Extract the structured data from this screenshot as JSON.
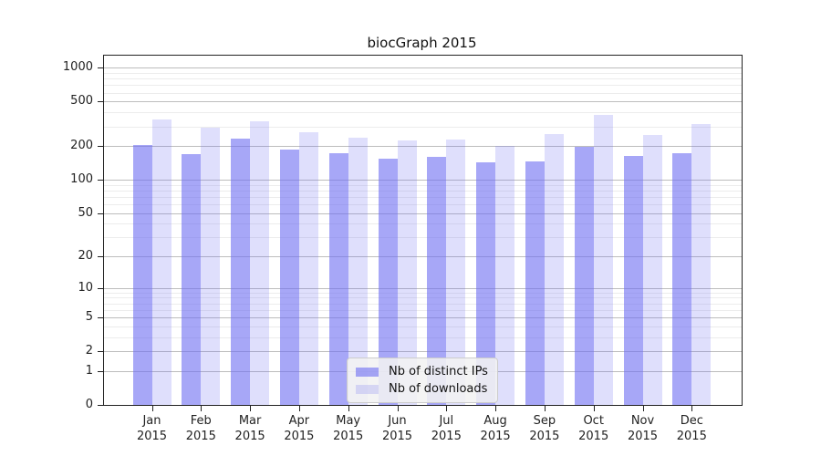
{
  "chart_data": {
    "type": "bar",
    "title": "biocGraph 2015",
    "categories": [
      "Jan",
      "Feb",
      "Mar",
      "Apr",
      "May",
      "Jun",
      "Jul",
      "Aug",
      "Sep",
      "Oct",
      "Nov",
      "Dec"
    ],
    "year": "2015",
    "series": [
      {
        "name": "Nb of distinct IPs",
        "color": "rgba(108,108,242,0.60)",
        "values": [
          205,
          169,
          232,
          187,
          174,
          154,
          160,
          144,
          146,
          196,
          164,
          172
        ]
      },
      {
        "name": "Nb of downloads",
        "color": "rgba(108,108,242,0.22)",
        "values": [
          346,
          291,
          334,
          265,
          238,
          226,
          229,
          202,
          256,
          380,
          251,
          315
        ]
      }
    ],
    "xlabel": "",
    "ylabel": "",
    "y_axis": {
      "scale": "log1p",
      "ticks": [
        0,
        1,
        2,
        5,
        10,
        20,
        50,
        100,
        200,
        500,
        1000
      ],
      "minor_ticks": [
        3,
        4,
        6,
        7,
        8,
        9,
        30,
        40,
        60,
        70,
        80,
        90,
        300,
        400,
        600,
        700,
        800,
        900
      ],
      "ylim": [
        0,
        1280
      ]
    },
    "grid": "on",
    "legend_position": "inside-bottom-center"
  },
  "colors": {
    "bar_distinct_ips": "rgba(108,108,242,0.60)",
    "bar_downloads": "rgba(108,108,242,0.22)",
    "gridline_major": "#bdbdbd",
    "gridline_minor": "#ececec",
    "axis": "#222222",
    "legend_background": "#f2f2f2"
  }
}
